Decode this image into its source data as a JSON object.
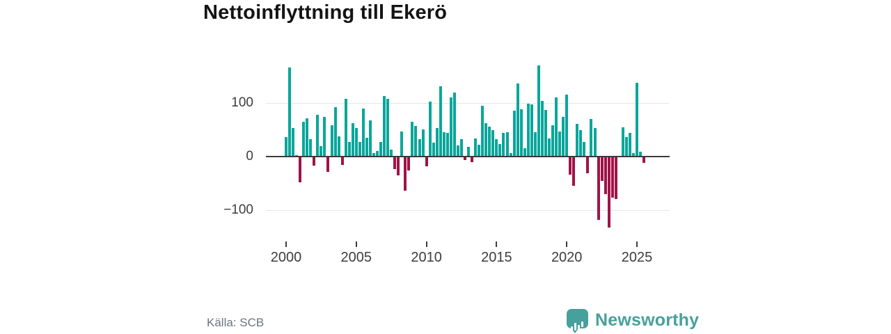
{
  "chart_data": {
    "type": "bar",
    "title": "Nettoinflyttning till Ekerö",
    "frequency": "quarterly",
    "x_start": "2000 Q1",
    "values": [
      37,
      166,
      53,
      2,
      -48,
      65,
      71,
      32,
      -17,
      78,
      19,
      74,
      -29,
      58,
      92,
      38,
      -15,
      108,
      27,
      62,
      53,
      27,
      90,
      35,
      68,
      6,
      10,
      27,
      113,
      108,
      13,
      -23,
      -35,
      47,
      -63,
      -26,
      65,
      57,
      33,
      51,
      -18,
      102,
      26,
      53,
      131,
      46,
      44,
      111,
      119,
      21,
      33,
      -7,
      18,
      -10,
      34,
      22,
      95,
      62,
      56,
      49,
      33,
      24,
      44,
      46,
      6,
      86,
      137,
      88,
      16,
      99,
      97,
      45,
      170,
      104,
      87,
      34,
      58,
      110,
      47,
      74,
      116,
      -34,
      -55,
      61,
      49,
      27,
      -31,
      70,
      53,
      -118,
      -46,
      -70,
      -133,
      -77,
      -79,
      0,
      54,
      37,
      44,
      6,
      138,
      9,
      -12
    ],
    "x_ticks": [
      {
        "label": "2000",
        "bar_index": 0
      },
      {
        "label": "2005",
        "bar_index": 20
      },
      {
        "label": "2010",
        "bar_index": 40
      },
      {
        "label": "2015",
        "bar_index": 60
      },
      {
        "label": "2020",
        "bar_index": 80
      },
      {
        "label": "2025",
        "bar_index": 100
      }
    ],
    "y_ticks": [
      {
        "label": "100",
        "value": 100
      },
      {
        "label": "0",
        "value": 0
      },
      {
        "label": "−100",
        "value": -100
      }
    ],
    "ylim": [
      -150,
      180
    ],
    "grid": "horizontal",
    "legend": "none",
    "colors": {
      "positive": "#0aa69b",
      "negative": "#a01347"
    }
  },
  "footer": {
    "source_label": "Källa: SCB",
    "brand_label": "Newsworthy"
  }
}
